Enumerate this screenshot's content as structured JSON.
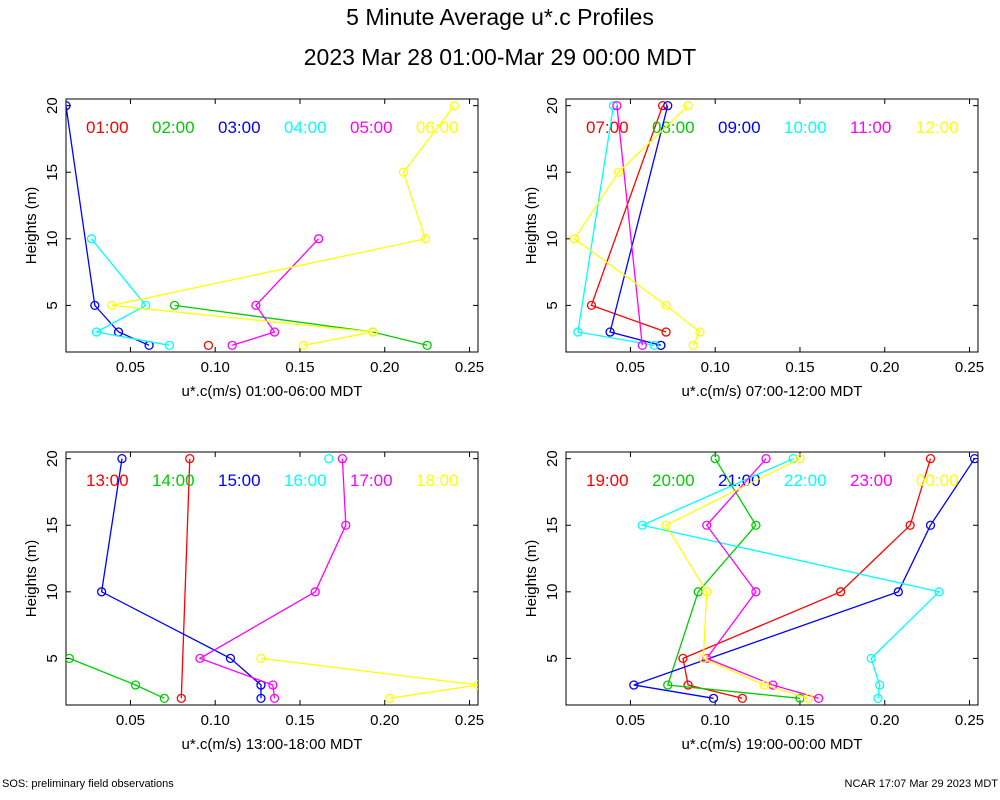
{
  "header": {
    "title": "5 Minute Average u*.c Profiles",
    "subtitle": "2023 Mar 28 01:00-Mar 29 00:00 MDT"
  },
  "footer": {
    "left": "SOS: preliminary field observations",
    "right": "NCAR 17:07 Mar 29 2023 MDT"
  },
  "colors": [
    "#ff0000",
    "#00cc00",
    "#0000ff",
    "#00ffff",
    "#ff00ff",
    "#ffff00"
  ],
  "chart_data": [
    {
      "type": "line",
      "xlabel": "u*.c(m/s) 01:00-06:00 MDT",
      "ylabel": "Heights (m)",
      "xlim": [
        0.012,
        0.255
      ],
      "ylim": [
        1.5,
        20.5
      ],
      "xticks": [
        "0.05",
        "0.10",
        "0.15",
        "0.20",
        "0.25"
      ],
      "yticks": [
        "5",
        "10",
        "15",
        "20"
      ],
      "series": [
        {
          "name": "01:00",
          "points": [
            [
              0.096,
              2
            ]
          ]
        },
        {
          "name": "02:00",
          "points": [
            [
              0.225,
              2
            ],
            [
              0.193,
              3
            ],
            [
              0.076,
              5
            ]
          ]
        },
        {
          "name": "03:00",
          "points": [
            [
              0.061,
              2
            ],
            [
              0.043,
              3
            ],
            [
              0.029,
              5
            ],
            [
              0.012,
              20
            ]
          ]
        },
        {
          "name": "04:00",
          "points": [
            [
              0.073,
              2
            ],
            [
              0.03,
              3
            ],
            [
              0.059,
              5
            ],
            [
              0.027,
              10
            ]
          ]
        },
        {
          "name": "05:00",
          "points": [
            [
              0.11,
              2
            ],
            [
              0.135,
              3
            ],
            [
              0.124,
              5
            ],
            [
              0.161,
              10
            ]
          ]
        },
        {
          "name": "06:00",
          "points": [
            [
              0.152,
              2
            ],
            [
              0.193,
              3
            ],
            [
              0.039,
              5
            ],
            [
              0.224,
              10
            ],
            [
              0.211,
              15
            ],
            [
              0.241,
              20
            ]
          ]
        }
      ]
    },
    {
      "type": "line",
      "xlabel": "u*.c(m/s) 07:00-12:00 MDT",
      "ylabel": "Heights (m)",
      "xlim": [
        0.012,
        0.255
      ],
      "ylim": [
        1.5,
        20.5
      ],
      "xticks": [
        "0.05",
        "0.10",
        "0.15",
        "0.20",
        "0.25"
      ],
      "yticks": [
        "5",
        "10",
        "15",
        "20"
      ],
      "series": [
        {
          "name": "07:00",
          "points": [
            [
              0.071,
              3
            ],
            [
              0.027,
              5
            ],
            [
              0.069,
              20
            ]
          ]
        },
        {
          "name": "08:00",
          "points": [
            [
              0.068,
              2
            ]
          ]
        },
        {
          "name": "09:00",
          "points": [
            [
              0.068,
              2
            ],
            [
              0.038,
              3
            ],
            [
              0.072,
              20
            ]
          ]
        },
        {
          "name": "10:00",
          "points": [
            [
              0.064,
              2
            ],
            [
              0.019,
              3
            ],
            [
              0.04,
              20
            ]
          ]
        },
        {
          "name": "11:00",
          "points": [
            [
              0.057,
              2
            ],
            [
              0.042,
              20
            ]
          ]
        },
        {
          "name": "12:00",
          "points": [
            [
              0.087,
              2
            ],
            [
              0.091,
              3
            ],
            [
              0.071,
              5
            ],
            [
              0.017,
              10
            ],
            [
              0.043,
              15
            ],
            [
              0.084,
              20
            ]
          ]
        }
      ]
    },
    {
      "type": "line",
      "xlabel": "u*.c(m/s) 13:00-18:00 MDT",
      "ylabel": "Heights (m)",
      "xlim": [
        0.012,
        0.255
      ],
      "ylim": [
        1.5,
        20.5
      ],
      "xticks": [
        "0.05",
        "0.10",
        "0.15",
        "0.20",
        "0.25"
      ],
      "yticks": [
        "5",
        "10",
        "15",
        "20"
      ],
      "series": [
        {
          "name": "13:00",
          "points": [
            [
              0.08,
              2
            ],
            [
              0.085,
              20
            ]
          ]
        },
        {
          "name": "14:00",
          "points": [
            [
              0.07,
              2
            ],
            [
              0.053,
              3
            ],
            [
              0.014,
              5
            ]
          ]
        },
        {
          "name": "15:00",
          "points": [
            [
              0.127,
              2
            ],
            [
              0.127,
              3
            ],
            [
              0.109,
              5
            ],
            [
              0.033,
              10
            ],
            [
              0.045,
              20
            ]
          ]
        },
        {
          "name": "16:00",
          "points": [
            [
              0.167,
              20
            ]
          ]
        },
        {
          "name": "17:00",
          "points": [
            [
              0.135,
              2
            ],
            [
              0.134,
              3
            ],
            [
              0.091,
              5
            ],
            [
              0.159,
              10
            ],
            [
              0.177,
              15
            ],
            [
              0.175,
              20
            ]
          ]
        },
        {
          "name": "18:00",
          "points": [
            [
              0.203,
              2
            ],
            [
              0.255,
              3
            ],
            [
              0.127,
              5
            ]
          ]
        }
      ]
    },
    {
      "type": "line",
      "xlabel": "u*.c(m/s) 19:00-00:00 MDT",
      "ylabel": "Heights (m)",
      "xlim": [
        0.012,
        0.255
      ],
      "ylim": [
        1.5,
        20.5
      ],
      "xticks": [
        "0.05",
        "0.10",
        "0.15",
        "0.20",
        "0.25"
      ],
      "yticks": [
        "5",
        "10",
        "15",
        "20"
      ],
      "series": [
        {
          "name": "19:00",
          "points": [
            [
              0.116,
              2
            ],
            [
              0.084,
              3
            ],
            [
              0.081,
              5
            ],
            [
              0.174,
              10
            ],
            [
              0.215,
              15
            ],
            [
              0.227,
              20
            ]
          ]
        },
        {
          "name": "20:00",
          "points": [
            [
              0.15,
              2
            ],
            [
              0.072,
              3
            ],
            [
              0.09,
              10
            ],
            [
              0.124,
              15
            ],
            [
              0.1,
              20
            ]
          ]
        },
        {
          "name": "21:00",
          "points": [
            [
              0.099,
              2
            ],
            [
              0.052,
              3
            ],
            [
              0.208,
              10
            ],
            [
              0.227,
              15
            ],
            [
              0.253,
              20
            ]
          ]
        },
        {
          "name": "22:00",
          "points": [
            [
              0.196,
              2
            ],
            [
              0.197,
              3
            ],
            [
              0.192,
              5
            ],
            [
              0.232,
              10
            ],
            [
              0.057,
              15
            ],
            [
              0.146,
              20
            ]
          ]
        },
        {
          "name": "23:00",
          "points": [
            [
              0.161,
              2
            ],
            [
              0.134,
              3
            ],
            [
              0.095,
              5
            ],
            [
              0.124,
              10
            ],
            [
              0.095,
              15
            ],
            [
              0.13,
              20
            ]
          ]
        },
        {
          "name": "00:00",
          "points": [
            [
              0.155,
              2
            ],
            [
              0.129,
              3
            ],
            [
              0.093,
              5
            ],
            [
              0.095,
              10
            ],
            [
              0.071,
              15
            ],
            [
              0.15,
              20
            ]
          ]
        }
      ]
    }
  ]
}
